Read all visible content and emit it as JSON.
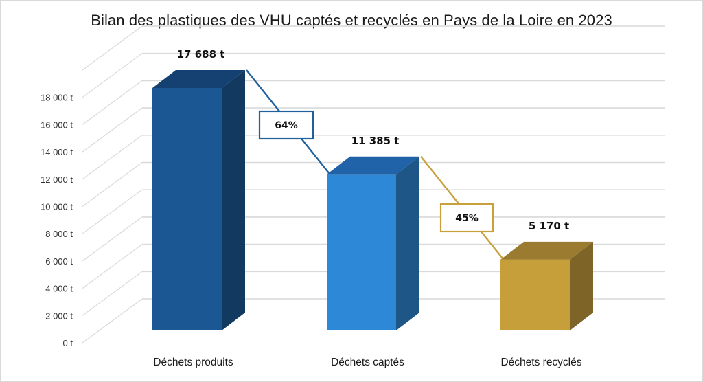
{
  "title": "Bilan des plastiques des VHU captés et recyclés en Pays de la Loire en 2023",
  "chart_data": {
    "type": "bar",
    "style": "3d-column",
    "title": "Bilan des plastiques des VHU captés et recyclés en Pays de la Loire en 2023",
    "categories": [
      "Déchets produits",
      "Déchets captés",
      "Déchets recyclés"
    ],
    "values": [
      17688,
      11385,
      5170
    ],
    "value_labels": [
      "17 688 t",
      "11 385 t",
      "5 170 t"
    ],
    "unit": "t",
    "xlabel": "",
    "ylabel": "",
    "ylim": [
      0,
      20000
    ],
    "yticks": [
      0,
      2000,
      4000,
      6000,
      8000,
      10000,
      12000,
      14000,
      16000,
      18000
    ],
    "ytick_labels": [
      "0 t",
      "2 000 t",
      "4 000 t",
      "6 000 t",
      "8 000 t",
      "10 000 t",
      "12 000 t",
      "14 000 t",
      "16 000 t",
      "18 000 t"
    ],
    "grid": true,
    "legend": null,
    "colors": {
      "bar_front": [
        "#1b5793",
        "#2e88d8",
        "#c79f3a"
      ],
      "bar_top": [
        "#154172",
        "#2163a8",
        "#9a7b2f"
      ],
      "bar_side": [
        "#123a61",
        "#1f5688",
        "#7f6428"
      ]
    },
    "annotations": [
      {
        "from": "Déchets produits",
        "to": "Déchets captés",
        "label": "64%",
        "color": "#21609b"
      },
      {
        "from": "Déchets captés",
        "to": "Déchets recyclés",
        "label": "45%",
        "color": "#c8a13c"
      }
    ]
  }
}
